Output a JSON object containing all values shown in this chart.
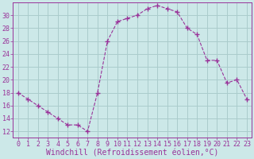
{
  "x": [
    0,
    1,
    2,
    3,
    4,
    5,
    6,
    7,
    8,
    9,
    10,
    11,
    12,
    13,
    14,
    15,
    16,
    17,
    18,
    19,
    20,
    21,
    22,
    23
  ],
  "y": [
    18,
    17,
    16,
    15,
    14,
    13,
    13,
    12,
    18,
    26,
    29,
    29.5,
    30,
    31,
    31.5,
    31,
    30.5,
    28,
    27,
    23,
    23,
    19.5,
    20,
    17
  ],
  "line_color": "#993399",
  "marker": "+",
  "marker_size": 4,
  "bg_color": "#cce8e8",
  "grid_color": "#aacccc",
  "xlabel": "Windchill (Refroidissement éolien,°C)",
  "xlabel_fontsize": 7,
  "xtick_labels": [
    "0",
    "1",
    "2",
    "3",
    "4",
    "5",
    "6",
    "7",
    "8",
    "9",
    "10",
    "11",
    "12",
    "13",
    "14",
    "15",
    "16",
    "17",
    "18",
    "19",
    "20",
    "21",
    "22",
    "23"
  ],
  "ytick_values": [
    12,
    14,
    16,
    18,
    20,
    22,
    24,
    26,
    28,
    30
  ],
  "ylim": [
    11.0,
    32.0
  ],
  "xlim": [
    -0.5,
    23.5
  ],
  "tick_color": "#993399",
  "tick_fontsize": 6,
  "spine_color": "#993399"
}
